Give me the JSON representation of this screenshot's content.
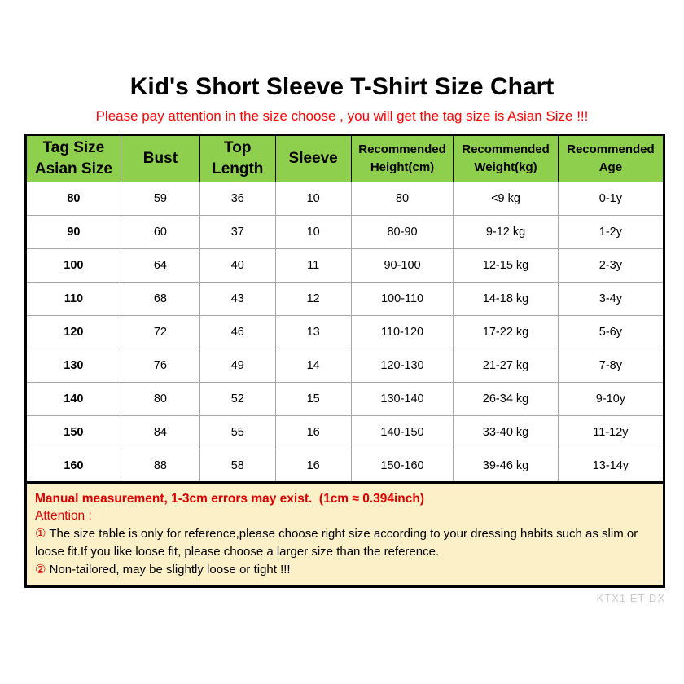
{
  "page": {
    "title": "Kid's Short Sleeve T-Shirt Size Chart",
    "subtitle": "Please pay attention in the size choose , you will get the tag size is Asian Size !!!",
    "watermark": "KTX1 ET-DX"
  },
  "colors": {
    "header_green": "#8ecf4d",
    "note_background_cream": "#fcf0c8",
    "subtitle_red": "#ff0000",
    "note_red": "#dd0000",
    "outer_border_black": "#000000",
    "grid_gray": "#a6a6a6",
    "watermark_gray": "#c9c9c9"
  },
  "table": {
    "column_keys": [
      "tag-size",
      "bust",
      "top-length",
      "sleeve",
      "height",
      "weight",
      "age"
    ],
    "headers": [
      {
        "lines": [
          "Tag Size",
          "Asian Size"
        ],
        "small": false
      },
      {
        "lines": [
          "Bust"
        ],
        "small": false
      },
      {
        "lines": [
          "Top",
          "Length"
        ],
        "small": false
      },
      {
        "lines": [
          "Sleeve"
        ],
        "small": false
      },
      {
        "lines": [
          "Recommended",
          "Height(cm)"
        ],
        "small": true
      },
      {
        "lines": [
          "Recommended",
          "Weight(kg)"
        ],
        "small": true
      },
      {
        "lines": [
          "Recommended",
          "Age"
        ],
        "small": true
      }
    ],
    "rows": [
      [
        "80",
        "59",
        "36",
        "10",
        "80",
        "<9 kg",
        "0-1y"
      ],
      [
        "90",
        "60",
        "37",
        "10",
        "80-90",
        "9-12 kg",
        "1-2y"
      ],
      [
        "100",
        "64",
        "40",
        "11",
        "90-100",
        "12-15 kg",
        "2-3y"
      ],
      [
        "110",
        "68",
        "43",
        "12",
        "100-110",
        "14-18 kg",
        "3-4y"
      ],
      [
        "120",
        "72",
        "46",
        "13",
        "110-120",
        "17-22 kg",
        "5-6y"
      ],
      [
        "130",
        "76",
        "49",
        "14",
        "120-130",
        "21-27 kg",
        "7-8y"
      ],
      [
        "140",
        "80",
        "52",
        "15",
        "130-140",
        "26-34 kg",
        "9-10y"
      ],
      [
        "150",
        "84",
        "55",
        "16",
        "140-150",
        "33-40 kg",
        "11-12y"
      ],
      [
        "160",
        "88",
        "58",
        "16",
        "150-160",
        "39-46 kg",
        "13-14y"
      ]
    ]
  },
  "notes": {
    "measurement": "Manual measurement, 1-3cm errors may exist.  (1cm ≈ 0.394inch)",
    "attention_label": "Attention :",
    "items": [
      {
        "marker": "①",
        "text": "The size table is only for reference,please choose right size according to your dressing habits such as slim or loose fit.If you like loose fit, please choose a larger size than the reference."
      },
      {
        "marker": "②",
        "text": "Non-tailored, may be slightly loose or tight !!!"
      }
    ]
  }
}
